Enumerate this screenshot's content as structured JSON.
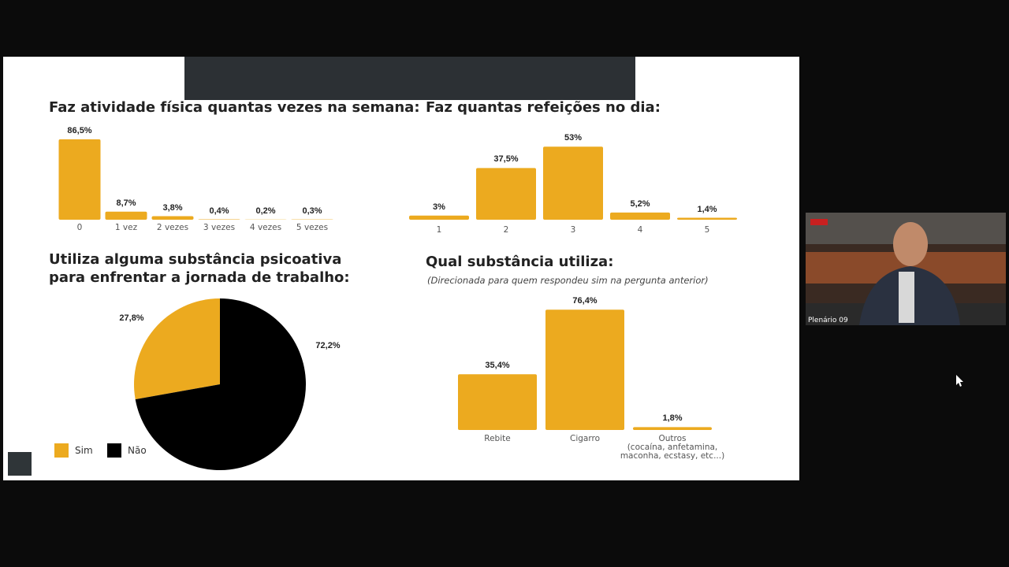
{
  "chart_data": [
    {
      "type": "bar",
      "title": "Faz atividade física quantas vezes na semana:",
      "categories": [
        "0",
        "1 vez",
        "2 vezes",
        "3 vezes",
        "4 vezes",
        "5 vezes"
      ],
      "values": [
        86.5,
        8.7,
        3.8,
        0.4,
        0.2,
        0.3
      ],
      "value_labels": [
        "86,5%",
        "8,7%",
        "3,8%",
        "0,4%",
        "0,2%",
        "0,3%"
      ],
      "color": "#ecaa1f"
    },
    {
      "type": "bar",
      "title": "Faz quantas refeições no dia:",
      "categories": [
        "1",
        "2",
        "3",
        "4",
        "5"
      ],
      "values": [
        3,
        37.5,
        53,
        5.2,
        1.4
      ],
      "value_labels": [
        "3%",
        "37,5%",
        "53%",
        "5,2%",
        "1,4%"
      ],
      "color": "#ecaa1f"
    },
    {
      "type": "pie",
      "title": "Utiliza alguma substância psicoativa\npara enfrentar a jornada de trabalho:",
      "categories": [
        "Sim",
        "Não"
      ],
      "values": [
        27.8,
        72.2
      ],
      "value_labels": [
        "27,8%",
        "72,2%"
      ],
      "colors": [
        "#ecaa1f",
        "#000000"
      ],
      "legend": "bottom-left"
    },
    {
      "type": "bar",
      "title": "Qual substância utiliza:",
      "subtitle": "(Direcionada para quem respondeu sim na pergunta anterior)",
      "categories": [
        "Rebite",
        "Cigarro",
        "Outros\n(cocaína, anfetamina,\nmaconha, ecstasy, etc...)"
      ],
      "values": [
        35.4,
        76.4,
        1.8
      ],
      "value_labels": [
        "35,4%",
        "76,4%",
        "1,8%"
      ],
      "color": "#ecaa1f"
    }
  ],
  "video": {
    "label": "Plenário 09"
  }
}
